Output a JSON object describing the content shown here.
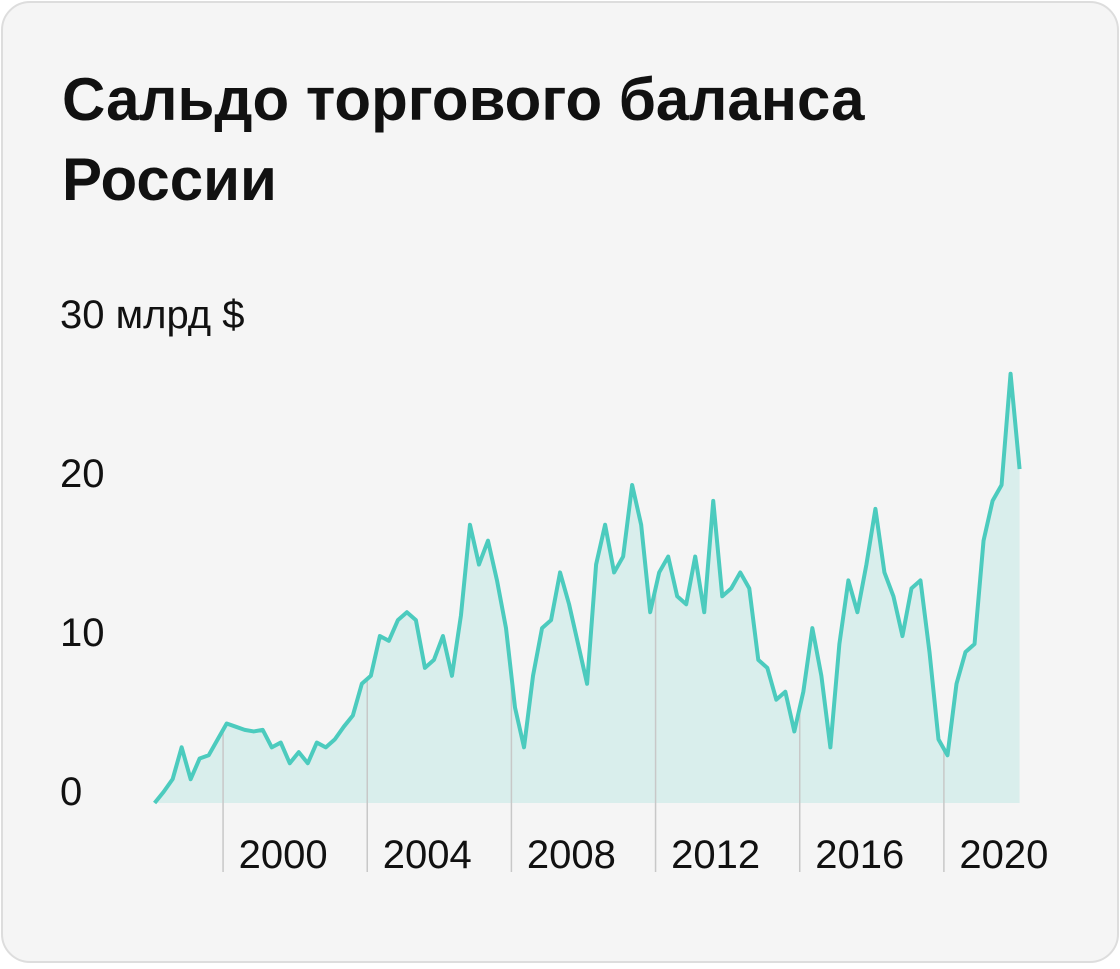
{
  "chart_data": {
    "type": "area",
    "title": "Сальдо торгового баланса России",
    "x": [
      1998.1,
      1998.35,
      1998.6,
      1998.85,
      1999.1,
      1999.35,
      1999.6,
      1999.85,
      2000.1,
      2000.35,
      2000.6,
      2000.85,
      2001.1,
      2001.35,
      2001.6,
      2001.85,
      2002.1,
      2002.35,
      2002.6,
      2002.85,
      2003.1,
      2003.35,
      2003.6,
      2003.85,
      2004.1,
      2004.35,
      2004.6,
      2004.85,
      2005.1,
      2005.35,
      2005.6,
      2005.85,
      2006.1,
      2006.35,
      2006.6,
      2006.85,
      2007.1,
      2007.35,
      2007.6,
      2007.85,
      2008.1,
      2008.35,
      2008.6,
      2008.85,
      2009.1,
      2009.35,
      2009.6,
      2009.85,
      2010.1,
      2010.35,
      2010.6,
      2010.85,
      2011.1,
      2011.35,
      2011.6,
      2011.85,
      2012.1,
      2012.35,
      2012.6,
      2012.85,
      2013.1,
      2013.35,
      2013.6,
      2013.85,
      2014.1,
      2014.35,
      2014.6,
      2014.85,
      2015.1,
      2015.35,
      2015.6,
      2015.85,
      2016.1,
      2016.35,
      2016.6,
      2016.85,
      2017.1,
      2017.35,
      2017.6,
      2017.85,
      2018.1,
      2018.35,
      2018.6,
      2018.85,
      2019.1,
      2019.35,
      2019.6,
      2019.85,
      2020.1,
      2020.35,
      2020.6,
      2020.85,
      2021.1,
      2021.35,
      2021.6,
      2021.85,
      2022.1
    ],
    "series": [
      {
        "color": "#4ccbbe",
        "values": [
          0,
          0.7,
          1.5,
          3.5,
          1.5,
          2.8,
          3.0,
          4.0,
          5.0,
          4.8,
          4.6,
          4.5,
          4.6,
          3.5,
          3.8,
          2.5,
          3.2,
          2.5,
          3.8,
          3.5,
          4.0,
          4.8,
          5.5,
          7.5,
          8.0,
          10.5,
          10.2,
          11.5,
          12.0,
          11.5,
          8.5,
          9.0,
          10.5,
          8.0,
          11.8,
          17.5,
          15.0,
          16.5,
          14.0,
          11.0,
          6.0,
          3.5,
          8.0,
          11.0,
          11.5,
          14.5,
          12.5,
          10.0,
          7.5,
          15.0,
          17.5,
          14.5,
          15.5,
          20.0,
          17.5,
          12.0,
          14.5,
          15.5,
          13.0,
          12.5,
          15.5,
          12.0,
          19.0,
          13.0,
          13.5,
          14.5,
          13.5,
          9.0,
          8.5,
          6.5,
          7.0,
          4.5,
          7.0,
          11.0,
          8.0,
          3.5,
          10.0,
          14.0,
          12.0,
          15.0,
          18.5,
          14.5,
          13.0,
          10.5,
          13.5,
          14.0,
          9.5,
          4.0,
          3.0,
          7.5,
          9.5,
          10.0,
          16.5,
          19.0,
          20.0,
          27.0,
          21.0
        ]
      }
    ],
    "xlim": [
      1998,
      2022.5
    ],
    "xticks": [
      2000,
      2004,
      2008,
      2012,
      2016,
      2020
    ],
    "ylim": [
      0,
      30
    ],
    "yticks": [
      0,
      10,
      20,
      {
        "value": 30,
        "label": "30 млрд $"
      }
    ]
  }
}
